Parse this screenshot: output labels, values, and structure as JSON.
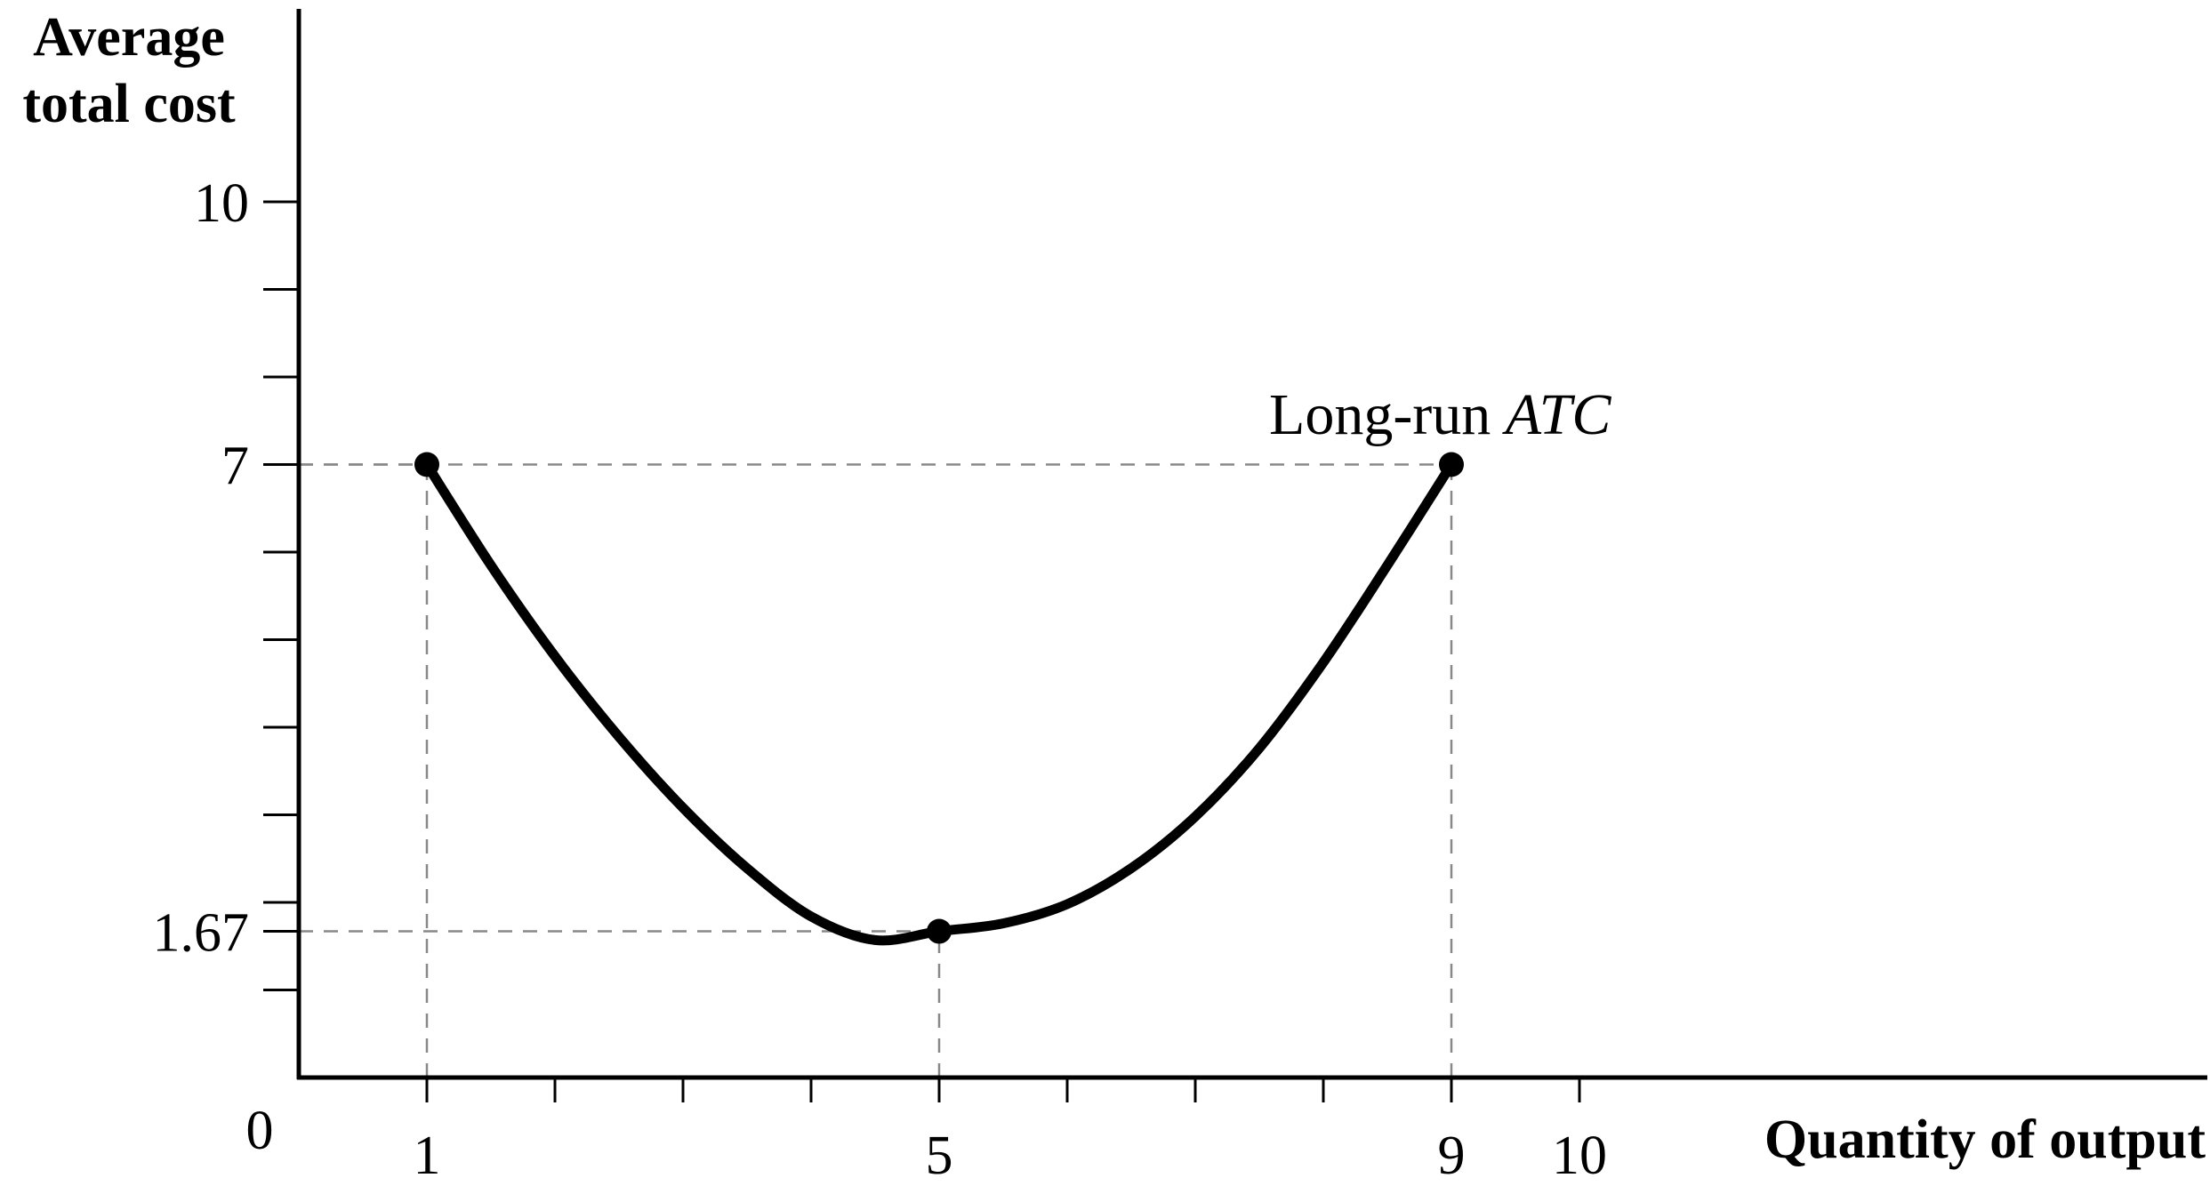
{
  "chart_data": {
    "type": "line",
    "ylabel_lines": [
      "Average",
      "total cost"
    ],
    "xlabel": "Quantity of output",
    "origin_label": "0",
    "curve_label_prefix": "Long-run ",
    "curve_label_italic": "ATC",
    "xlim": [
      0,
      10.5
    ],
    "ylim": [
      0,
      12
    ],
    "x_minor_ticks": [
      1,
      2,
      3,
      4,
      5,
      6,
      7,
      8,
      9,
      10
    ],
    "y_minor_ticks": [
      1,
      2,
      3,
      4,
      5,
      6,
      7,
      8,
      9,
      10
    ],
    "x_tick_labels": [
      {
        "value": 1,
        "label": "1"
      },
      {
        "value": 5,
        "label": "5"
      },
      {
        "value": 9,
        "label": "9"
      },
      {
        "value": 10,
        "label": "10"
      }
    ],
    "y_tick_labels": [
      {
        "value": 10,
        "label": "10"
      },
      {
        "value": 7,
        "label": "7"
      },
      {
        "value": 1.67,
        "label": "1.67"
      }
    ],
    "series": [
      {
        "name": "Long-run ATC",
        "color": "#000000",
        "curve": [
          [
            1,
            7
          ],
          [
            1.5,
            5.85
          ],
          [
            2,
            4.81
          ],
          [
            2.5,
            3.89
          ],
          [
            3,
            3.08
          ],
          [
            3.5,
            2.39
          ],
          [
            4,
            1.84
          ],
          [
            4.5,
            1.57
          ],
          [
            5,
            1.67
          ],
          [
            5.5,
            1.76
          ],
          [
            6,
            1.98
          ],
          [
            6.5,
            2.39
          ],
          [
            7,
            2.98
          ],
          [
            7.5,
            3.76
          ],
          [
            8,
            4.74
          ],
          [
            8.5,
            5.85
          ],
          [
            9,
            7
          ]
        ],
        "points": [
          {
            "x": 1,
            "y": 7
          },
          {
            "x": 5,
            "y": 1.67
          },
          {
            "x": 9,
            "y": 7
          }
        ]
      }
    ],
    "guides": [
      {
        "x": 1,
        "y": 7
      },
      {
        "x": 5,
        "y": 1.67
      },
      {
        "x": 9,
        "y": 7
      }
    ],
    "grid": false,
    "guide_color": "#888888"
  }
}
